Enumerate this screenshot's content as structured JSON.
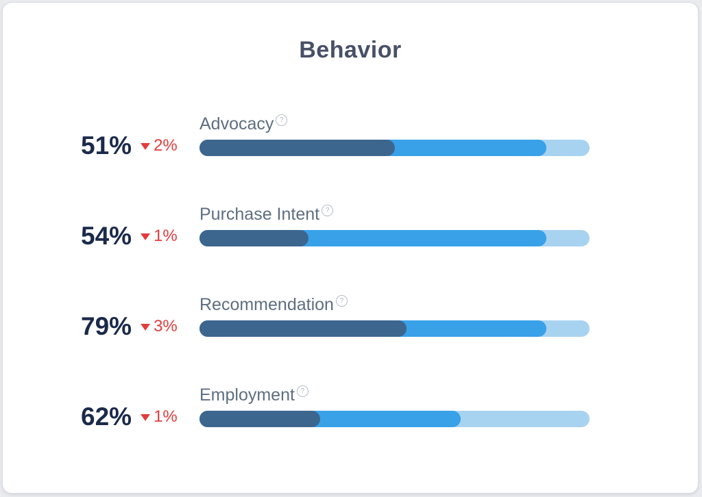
{
  "chart_data": {
    "type": "bar",
    "orientation": "horizontal-stacked",
    "title": "Behavior",
    "unit": "%",
    "xlim": [
      0,
      100
    ],
    "grid": false,
    "legend": "none",
    "segment_colors": {
      "dark": "#3d668f",
      "medium": "#38a1e8",
      "light": "#a8d3f0"
    },
    "rows": [
      {
        "label": "Advocacy",
        "value": "51%",
        "change": "2%",
        "change_direction": "down",
        "segments": [
          50,
          39,
          11
        ]
      },
      {
        "label": "Purchase Intent",
        "value": "54%",
        "change": "1%",
        "change_direction": "down",
        "segments": [
          28,
          61,
          11
        ]
      },
      {
        "label": "Recommendation",
        "value": "79%",
        "change": "3%",
        "change_direction": "down",
        "segments": [
          53,
          36,
          11
        ]
      },
      {
        "label": "Employment",
        "value": "62%",
        "change": "1%",
        "change_direction": "down",
        "segments": [
          31,
          36,
          33
        ]
      }
    ]
  },
  "icons": {
    "help_glyph": "?"
  },
  "colors": {
    "page_background": "#e9ebee",
    "card_background": "#ffffff",
    "card_border": "#d9dce1",
    "title_text": "#475066",
    "value_text": "#1b2a4a",
    "change_text": "#e23c3c",
    "label_text": "#5e6e80",
    "help_icon": "#aab3c0"
  }
}
